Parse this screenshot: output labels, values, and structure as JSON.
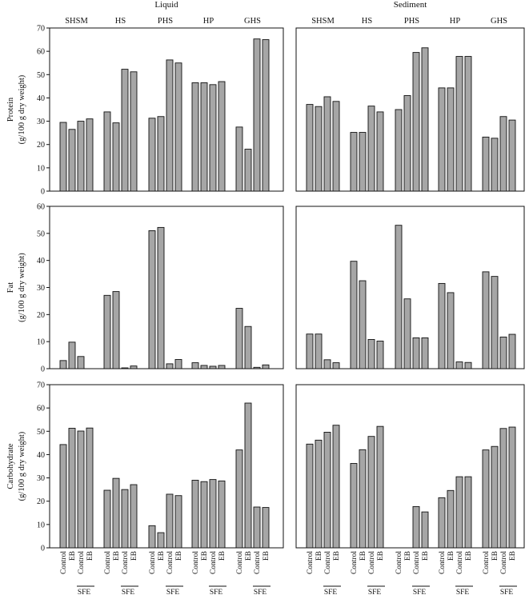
{
  "figure": {
    "column_titles": [
      "Liquid",
      "Sediment"
    ],
    "groups": [
      "SHSM",
      "HS",
      "PHS",
      "HP",
      "GHS"
    ],
    "bar_categories": [
      "Control",
      "EB",
      "Control",
      "EB"
    ],
    "sfe_label": "SFE",
    "row_ylabels": [
      [
        "Protein",
        "(g/100 g dry weight)"
      ],
      [
        "Fat",
        "(g/100 g dry weight)"
      ],
      [
        "Carbohydrate",
        "(g/100 g dry weight)"
      ]
    ],
    "colors": {
      "bar": "#a6a6a6",
      "bar_edge": "#111111",
      "axis": "#111111"
    }
  },
  "chart_data": [
    {
      "type": "bar",
      "id": "protein-liquid",
      "title": "Liquid",
      "ylabel": "Protein (g/100 g dry weight)",
      "ylim": [
        0,
        70
      ],
      "yticks": [
        0,
        10,
        20,
        30,
        40,
        50,
        60,
        70
      ],
      "groups": [
        "SHSM",
        "HS",
        "PHS",
        "HP",
        "GHS"
      ],
      "categories": [
        "Control",
        "EB",
        "Control",
        "EB"
      ],
      "values": [
        [
          29.5,
          26.5,
          30,
          31
        ],
        [
          34,
          29.3,
          52.3,
          51.2
        ],
        [
          31.3,
          32,
          56.3,
          55
        ],
        [
          46.5,
          46.5,
          45.7,
          47
        ],
        [
          27.5,
          18,
          65.3,
          65
        ]
      ]
    },
    {
      "type": "bar",
      "id": "protein-sediment",
      "title": "Sediment",
      "ylabel": "Protein (g/100 g dry weight)",
      "ylim": [
        0,
        70
      ],
      "yticks": [
        0,
        10,
        20,
        30,
        40,
        50,
        60,
        70
      ],
      "groups": [
        "SHSM",
        "HS",
        "PHS",
        "HP",
        "GHS"
      ],
      "categories": [
        "Control",
        "EB",
        "Control",
        "EB"
      ],
      "values": [
        [
          37.2,
          36.3,
          40.5,
          38.5
        ],
        [
          25.2,
          25.2,
          36.5,
          34
        ],
        [
          35,
          41,
          59.5,
          61.5
        ],
        [
          44.3,
          44.3,
          57.8,
          57.8
        ],
        [
          23.2,
          22.7,
          32,
          30.5
        ]
      ]
    },
    {
      "type": "bar",
      "id": "fat-liquid",
      "title": "",
      "ylabel": "Fat (g/100 g dry weight)",
      "ylim": [
        0,
        60
      ],
      "yticks": [
        0,
        10,
        20,
        30,
        40,
        50,
        60
      ],
      "groups": [
        "SHSM",
        "HS",
        "PHS",
        "HP",
        "GHS"
      ],
      "categories": [
        "Control",
        "EB",
        "Control",
        "EB"
      ],
      "values": [
        [
          3,
          9.8,
          4.5,
          0
        ],
        [
          27.1,
          28.5,
          0.3,
          1
        ],
        [
          51,
          52.2,
          1.8,
          3.4
        ],
        [
          2.2,
          1.2,
          0.9,
          1.2
        ],
        [
          22.3,
          15.6,
          0.5,
          1.4
        ]
      ]
    },
    {
      "type": "bar",
      "id": "fat-sediment",
      "title": "",
      "ylabel": "Fat (g/100 g dry weight)",
      "ylim": [
        0,
        60
      ],
      "yticks": [
        0,
        10,
        20,
        30,
        40,
        50,
        60
      ],
      "groups": [
        "SHSM",
        "HS",
        "PHS",
        "HP",
        "GHS"
      ],
      "categories": [
        "Control",
        "EB",
        "Control",
        "EB"
      ],
      "values": [
        [
          12.8,
          12.8,
          3.3,
          2.2
        ],
        [
          39.7,
          32.5,
          10.8,
          10.2
        ],
        [
          53,
          25.8,
          11.4,
          11.4
        ],
        [
          31.5,
          28.1,
          2.5,
          2.3
        ],
        [
          35.8,
          34.1,
          11.7,
          12.7
        ]
      ]
    },
    {
      "type": "bar",
      "id": "carbohydrate-liquid",
      "title": "",
      "ylabel": "Carbohydrate (g/100 g dry weight)",
      "ylim": [
        0,
        70
      ],
      "yticks": [
        0,
        10,
        20,
        30,
        40,
        50,
        60,
        70
      ],
      "groups": [
        "SHSM",
        "HS",
        "PHS",
        "HP",
        "GHS"
      ],
      "categories": [
        "Control",
        "EB",
        "Control",
        "EB"
      ],
      "values": [
        [
          44.3,
          51.3,
          50.1,
          51.4
        ],
        [
          24.7,
          29.8,
          25,
          27.1
        ],
        [
          9.5,
          6.5,
          23,
          22.4
        ],
        [
          29,
          28.4,
          29.3,
          28.7
        ],
        [
          42,
          62.1,
          17.5,
          17.3
        ]
      ]
    },
    {
      "type": "bar",
      "id": "carbohydrate-sediment",
      "title": "",
      "ylabel": "Carbohydrate (g/100 g dry weight)",
      "ylim": [
        0,
        70
      ],
      "yticks": [
        0,
        10,
        20,
        30,
        40,
        50,
        60,
        70
      ],
      "groups": [
        "SHSM",
        "HS",
        "PHS",
        "HP",
        "GHS"
      ],
      "categories": [
        "Control",
        "EB",
        "Control",
        "EB"
      ],
      "values": [
        [
          44.5,
          46.2,
          49.6,
          52.6
        ],
        [
          36.2,
          42.1,
          47.8,
          52.1
        ],
        [
          0,
          0,
          17.7,
          15.4
        ],
        [
          21.5,
          24.6,
          30.5,
          30.5
        ],
        [
          42,
          43.5,
          51.2,
          51.8
        ]
      ]
    }
  ]
}
